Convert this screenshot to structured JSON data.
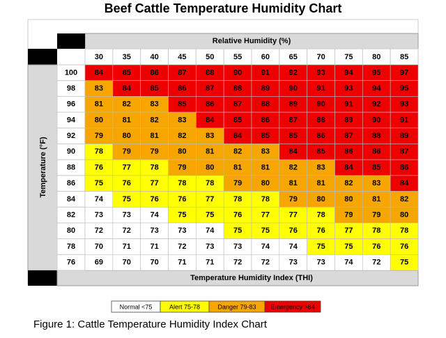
{
  "chart_data": {
    "type": "heatmap",
    "title": "Beef Cattle Temperature Humidity Chart",
    "x_label": "Relative Humidity (%)",
    "y_label": "Temperature (°F)",
    "value_label": "Temperature Humidity Index (THI)",
    "x": [
      30,
      35,
      40,
      45,
      50,
      55,
      60,
      65,
      70,
      75,
      80,
      85
    ],
    "y": [
      100,
      98,
      96,
      94,
      92,
      90,
      88,
      86,
      84,
      82,
      80,
      78,
      76
    ],
    "values": [
      [
        84,
        85,
        86,
        87,
        88,
        90,
        91,
        92,
        93,
        94,
        95,
        97
      ],
      [
        83,
        84,
        85,
        86,
        87,
        88,
        89,
        90,
        91,
        93,
        94,
        95
      ],
      [
        81,
        82,
        83,
        85,
        86,
        87,
        88,
        89,
        90,
        91,
        92,
        93
      ],
      [
        80,
        81,
        82,
        83,
        84,
        85,
        86,
        87,
        88,
        89,
        90,
        91
      ],
      [
        79,
        80,
        81,
        82,
        83,
        84,
        85,
        85,
        86,
        87,
        88,
        89
      ],
      [
        78,
        79,
        79,
        80,
        81,
        82,
        83,
        84,
        85,
        86,
        86,
        87
      ],
      [
        76,
        77,
        78,
        79,
        80,
        81,
        81,
        82,
        83,
        84,
        85,
        86
      ],
      [
        75,
        76,
        77,
        78,
        78,
        79,
        80,
        81,
        81,
        82,
        83,
        84
      ],
      [
        74,
        75,
        76,
        76,
        77,
        78,
        78,
        79,
        80,
        80,
        81,
        82
      ],
      [
        73,
        73,
        74,
        75,
        75,
        76,
        77,
        77,
        78,
        79,
        79,
        80
      ],
      [
        72,
        72,
        73,
        73,
        74,
        75,
        75,
        76,
        76,
        77,
        78,
        78
      ],
      [
        70,
        71,
        71,
        72,
        73,
        73,
        74,
        74,
        75,
        75,
        76,
        76
      ],
      [
        69,
        70,
        70,
        71,
        71,
        72,
        72,
        73,
        73,
        74,
        72,
        75
      ]
    ],
    "legend": [
      {
        "label": "Normal <75",
        "color": "#ffffff"
      },
      {
        "label": "Alert 75-78",
        "color": "#ffff00",
        "from": 75
      },
      {
        "label": "Danger 79-83",
        "color": "#f7a600",
        "from": 79
      },
      {
        "label": "Emergency >84",
        "color": "#ee0000",
        "from": 84
      }
    ]
  },
  "caption": "Figure 1: Cattle Temperature Humidity Index Chart"
}
